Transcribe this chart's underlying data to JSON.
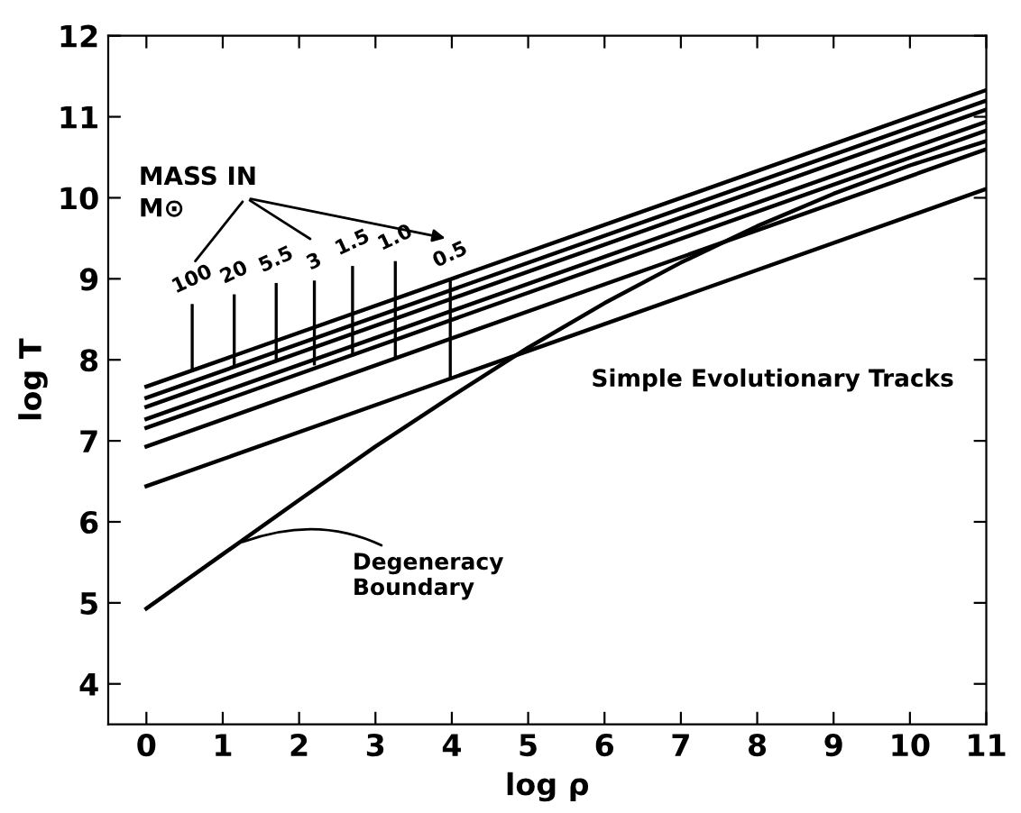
{
  "chart_data": {
    "type": "line",
    "xlabel": "log ρ",
    "ylabel": "log T",
    "xlim": [
      -0.5,
      11
    ],
    "ylim": [
      3.5,
      12
    ],
    "xticks": [
      0,
      1,
      2,
      3,
      4,
      5,
      6,
      7,
      8,
      9,
      10,
      11
    ],
    "yticks": [
      4,
      5,
      6,
      7,
      8,
      9,
      10,
      11,
      12
    ],
    "grid": false,
    "legend": false,
    "marker": "none",
    "line_style": "solid",
    "series": [
      {
        "color": "#000000",
        "x": [
          0,
          11
        ],
        "values": [
          7.67,
          11.33
        ]
      },
      {
        "color": "#000000",
        "x": [
          0,
          11
        ],
        "values": [
          7.53,
          11.2
        ]
      },
      {
        "color": "#000000",
        "x": [
          0,
          11
        ],
        "values": [
          7.42,
          11.09
        ]
      },
      {
        "color": "#000000",
        "x": [
          0,
          11
        ],
        "values": [
          7.27,
          10.94
        ]
      },
      {
        "color": "#000000",
        "x": [
          0,
          11
        ],
        "values": [
          7.16,
          10.83
        ]
      },
      {
        "color": "#000000",
        "x": [
          0,
          11
        ],
        "values": [
          6.93,
          10.6
        ]
      },
      {
        "color": "#000000",
        "x": [
          0,
          11
        ],
        "values": [
          6.44,
          10.11
        ]
      },
      {
        "color": "#000000",
        "x": [
          0,
          1,
          2,
          3,
          4,
          5,
          6,
          7,
          8,
          9,
          10,
          11
        ],
        "values": [
          4.93,
          5.6,
          6.27,
          6.93,
          7.55,
          8.15,
          8.7,
          9.2,
          9.65,
          10.05,
          10.4,
          10.7
        ]
      }
    ],
    "annotations": [
      "MASS IN\nM⊙",
      {
        "text": "100",
        "x": 0.6,
        "y": 7.87
      },
      {
        "text": "20",
        "x": 1.15,
        "y": 7.92
      },
      {
        "text": "5.5",
        "x": 1.7,
        "y": 7.99
      },
      {
        "text": "3",
        "x": 2.2,
        "y": 7.95
      },
      {
        "text": "1.5",
        "x": 2.7,
        "y": 8.06
      },
      {
        "text": "1.0",
        "x": 3.26,
        "y": 8.05
      },
      {
        "text": "0.5",
        "x": 3.98,
        "y": 7.77
      },
      "Simple Evolutionary Tracks",
      {
        "text": "Degeneracy\nBoundary",
        "x": 1.2,
        "y": 5.73
      }
    ]
  }
}
